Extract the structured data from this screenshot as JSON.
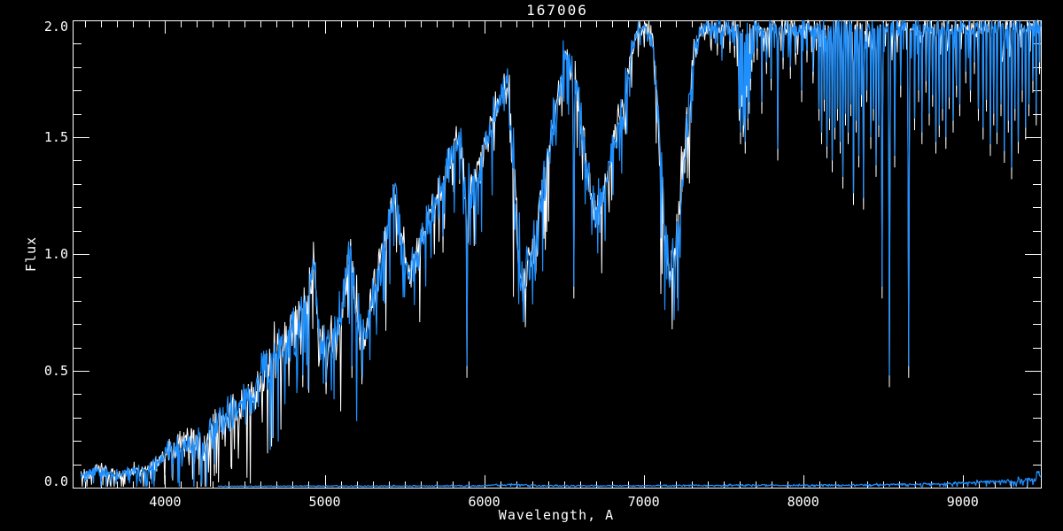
{
  "window": {
    "background": "#000000",
    "foreground": "#ffffff"
  },
  "chart_data": {
    "type": "line",
    "title": "167006",
    "xlabel": "Wavelength, A",
    "ylabel": "Flux",
    "xlim": [
      3420,
      9490
    ],
    "ylim": [
      0.0,
      2.0
    ],
    "grid": false,
    "frame_color": "#ffffff",
    "background_color": "#000000",
    "x_ticks": {
      "major": [
        4000,
        5000,
        6000,
        7000,
        8000,
        9000
      ],
      "labels": [
        "4000",
        "5000",
        "6000",
        "7000",
        "8000",
        "9000"
      ],
      "minor_step": 100
    },
    "y_ticks": {
      "major": [
        0.0,
        0.5,
        1.0,
        1.5,
        2.0
      ],
      "labels": [
        "0.0",
        "0.5",
        "1.0",
        "1.5",
        "2.0"
      ],
      "minor_step": 0.1
    },
    "series": [
      {
        "name": "spectrum",
        "color": "#1E90FF",
        "underlay_color": "#FFFFFF",
        "clip_max": 2.0,
        "anchors": {
          "wavelength": [
            3472,
            3520,
            3570,
            3620,
            3670,
            3720,
            3770,
            3820,
            3870,
            3920,
            3970,
            4020,
            4080,
            4150,
            4210,
            4250,
            4300,
            4360,
            4420,
            4480,
            4540,
            4600,
            4660,
            4720,
            4780,
            4840,
            4900,
            4935,
            4965,
            5010,
            5060,
            5110,
            5160,
            5200,
            5240,
            5290,
            5340,
            5390,
            5440,
            5480,
            5530,
            5580,
            5630,
            5690,
            5750,
            5810,
            5845,
            5880,
            5920,
            5970,
            6030,
            6090,
            6140,
            6175,
            6230,
            6280,
            6330,
            6390,
            6450,
            6510,
            6550,
            6600,
            6650,
            6700,
            6760,
            6820,
            6870,
            6920,
            6965,
            7010,
            7060,
            7110,
            7160,
            7210,
            7260,
            7310,
            7355,
            7400,
            9490
          ],
          "flux": [
            0.05,
            0.06,
            0.08,
            0.07,
            0.06,
            0.05,
            0.07,
            0.06,
            0.07,
            0.09,
            0.12,
            0.15,
            0.18,
            0.2,
            0.18,
            0.16,
            0.24,
            0.3,
            0.32,
            0.35,
            0.4,
            0.46,
            0.52,
            0.58,
            0.63,
            0.7,
            0.82,
            0.98,
            0.6,
            0.57,
            0.65,
            0.78,
            1.05,
            0.75,
            0.6,
            0.78,
            0.92,
            1.1,
            1.28,
            1.05,
            0.9,
            1.0,
            1.1,
            1.2,
            1.32,
            1.45,
            1.52,
            1.25,
            1.28,
            1.38,
            1.52,
            1.65,
            1.76,
            1.45,
            0.85,
            0.95,
            1.1,
            1.35,
            1.62,
            1.85,
            1.8,
            1.62,
            1.35,
            1.15,
            1.3,
            1.5,
            1.6,
            1.85,
            1.97,
            1.97,
            1.9,
            1.35,
            0.92,
            1.1,
            1.45,
            1.85,
            1.96,
            1.97,
            1.97
          ],
          "noise": [
            0.025,
            0.03,
            0.03,
            0.03,
            0.03,
            0.03,
            0.03,
            0.03,
            0.035,
            0.04,
            0.05,
            0.06,
            0.07,
            0.08,
            0.1,
            0.09,
            0.12,
            0.11,
            0.11,
            0.12,
            0.13,
            0.14,
            0.15,
            0.15,
            0.15,
            0.14,
            0.13,
            0.1,
            0.14,
            0.13,
            0.13,
            0.12,
            0.1,
            0.15,
            0.14,
            0.13,
            0.12,
            0.12,
            0.11,
            0.13,
            0.13,
            0.12,
            0.11,
            0.11,
            0.1,
            0.09,
            0.08,
            0.15,
            0.12,
            0.11,
            0.1,
            0.09,
            0.07,
            0.22,
            0.13,
            0.13,
            0.13,
            0.12,
            0.1,
            0.08,
            0.1,
            0.11,
            0.11,
            0.1,
            0.1,
            0.1,
            0.14,
            0.07,
            0.04,
            0.04,
            0.06,
            0.18,
            0.15,
            0.15,
            0.14,
            0.08,
            0.05,
            0.05,
            0.05
          ]
        },
        "spikes": [
          [
            4226,
            0.04
          ],
          [
            4308,
            0.1
          ],
          [
            4861,
            0.48
          ],
          [
            5007,
            0.45
          ],
          [
            5172,
            0.52
          ],
          [
            5891,
            0.52
          ],
          [
            6563,
            0.86
          ],
          [
            7425,
            1.92
          ],
          [
            7460,
            1.9
          ],
          [
            7500,
            1.93
          ],
          [
            7540,
            1.91
          ],
          [
            7570,
            1.89
          ],
          [
            7593,
            1.8
          ],
          [
            7601,
            1.62
          ],
          [
            7608,
            1.52
          ],
          [
            7616,
            1.68
          ],
          [
            7623,
            1.55
          ],
          [
            7630,
            1.6
          ],
          [
            7637,
            1.48
          ],
          [
            7645,
            1.72
          ],
          [
            7652,
            1.58
          ],
          [
            7660,
            1.65
          ],
          [
            7668,
            1.75
          ],
          [
            7678,
            1.83
          ],
          [
            7690,
            1.87
          ],
          [
            7712,
            1.88
          ],
          [
            7740,
            1.65
          ],
          [
            7772,
            1.82
          ],
          [
            7800,
            1.75
          ],
          [
            7840,
            1.45
          ],
          [
            7875,
            1.84
          ],
          [
            7918,
            1.8
          ],
          [
            7952,
            1.86
          ],
          [
            7990,
            1.7
          ],
          [
            8025,
            1.87
          ],
          [
            8062,
            1.78
          ],
          [
            8100,
            1.62
          ],
          [
            8117,
            1.52
          ],
          [
            8134,
            1.66
          ],
          [
            8151,
            1.46
          ],
          [
            8167,
            1.58
          ],
          [
            8184,
            1.4
          ],
          [
            8200,
            1.54
          ],
          [
            8217,
            1.62
          ],
          [
            8234,
            1.48
          ],
          [
            8250,
            1.33
          ],
          [
            8267,
            1.6
          ],
          [
            8284,
            1.52
          ],
          [
            8300,
            1.64
          ],
          [
            8317,
            1.26
          ],
          [
            8334,
            1.57
          ],
          [
            8350,
            1.42
          ],
          [
            8367,
            1.68
          ],
          [
            8380,
            1.24
          ],
          [
            8400,
            1.7
          ],
          [
            8422,
            1.5
          ],
          [
            8440,
            1.62
          ],
          [
            8457,
            1.38
          ],
          [
            8473,
            1.55
          ],
          [
            8494,
            0.86
          ],
          [
            8539,
            0.48
          ],
          [
            8573,
            1.42
          ],
          [
            8612,
            1.72
          ],
          [
            8661,
            0.52
          ],
          [
            8700,
            1.58
          ],
          [
            8723,
            1.7
          ],
          [
            8745,
            1.52
          ],
          [
            8768,
            1.74
          ],
          [
            8790,
            1.6
          ],
          [
            8812,
            1.68
          ],
          [
            8830,
            1.48
          ],
          [
            8851,
            1.55
          ],
          [
            8873,
            1.62
          ],
          [
            8895,
            1.5
          ],
          [
            8917,
            1.67
          ],
          [
            8940,
            1.57
          ],
          [
            8962,
            1.72
          ],
          [
            8981,
            1.64
          ],
          [
            9018,
            1.78
          ],
          [
            9050,
            1.7
          ],
          [
            9073,
            1.82
          ],
          [
            9100,
            1.62
          ],
          [
            9128,
            1.54
          ],
          [
            9150,
            1.66
          ],
          [
            9173,
            1.47
          ],
          [
            9195,
            1.6
          ],
          [
            9217,
            1.52
          ],
          [
            9240,
            1.64
          ],
          [
            9262,
            1.44
          ],
          [
            9284,
            1.57
          ],
          [
            9306,
            1.37
          ],
          [
            9328,
            1.62
          ],
          [
            9350,
            1.48
          ],
          [
            9372,
            1.7
          ],
          [
            9395,
            1.54
          ],
          [
            9417,
            1.64
          ],
          [
            9440,
            1.74
          ],
          [
            9462,
            1.6
          ],
          [
            9481,
            1.82
          ]
        ]
      },
      {
        "name": "baseline",
        "color": "#1E90FF",
        "anchors": {
          "wavelength": [
            4330,
            4600,
            5000,
            5500,
            6000,
            6100,
            6200,
            6300,
            6500,
            7000,
            7500,
            8000,
            8500,
            8900,
            9100,
            9250,
            9350,
            9420,
            9455,
            9470,
            9490
          ],
          "flux": [
            0.006,
            0.006,
            0.007,
            0.007,
            0.008,
            0.012,
            0.012,
            0.01,
            0.008,
            0.008,
            0.01,
            0.01,
            0.012,
            0.018,
            0.022,
            0.025,
            0.03,
            0.035,
            0.03,
            0.075,
            0.045
          ],
          "noise": [
            0.003,
            0.003,
            0.003,
            0.004,
            0.004,
            0.006,
            0.006,
            0.005,
            0.004,
            0.004,
            0.005,
            0.005,
            0.006,
            0.008,
            0.01,
            0.012,
            0.014,
            0.015,
            0.012,
            0.02,
            0.015
          ]
        },
        "spikes": []
      }
    ]
  }
}
